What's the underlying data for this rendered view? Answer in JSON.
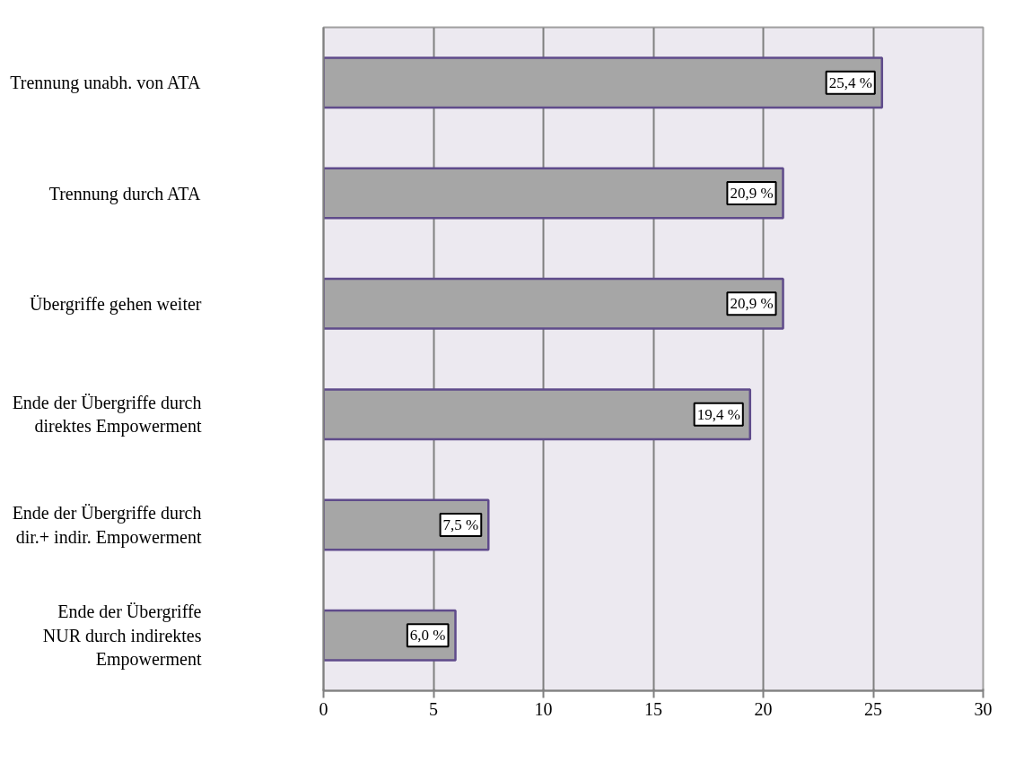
{
  "chart_data": {
    "type": "bar",
    "orientation": "horizontal",
    "categories": [
      "Trennung unabh. von ATA",
      "Trennung durch ATA",
      "Übergriffe gehen weiter",
      "Ende der Übergriffe durch\ndirektes Empowerment",
      "Ende der Übergriffe durch\ndir.+ indir. Empowerment",
      "Ende der Übergriffe\nNUR durch indirektes\nEmpowerment"
    ],
    "values": [
      25.4,
      20.9,
      20.9,
      19.4,
      7.5,
      6.0
    ],
    "value_labels": [
      "25,4 %",
      "20,9 %",
      "20,9 %",
      "19,4 %",
      "7,5 %",
      "6,0 %"
    ],
    "color": "#a6a6a6",
    "xlim": [
      0,
      30
    ],
    "xticks": [
      0,
      5,
      10,
      15,
      20,
      25,
      30
    ],
    "grid": "x"
  }
}
